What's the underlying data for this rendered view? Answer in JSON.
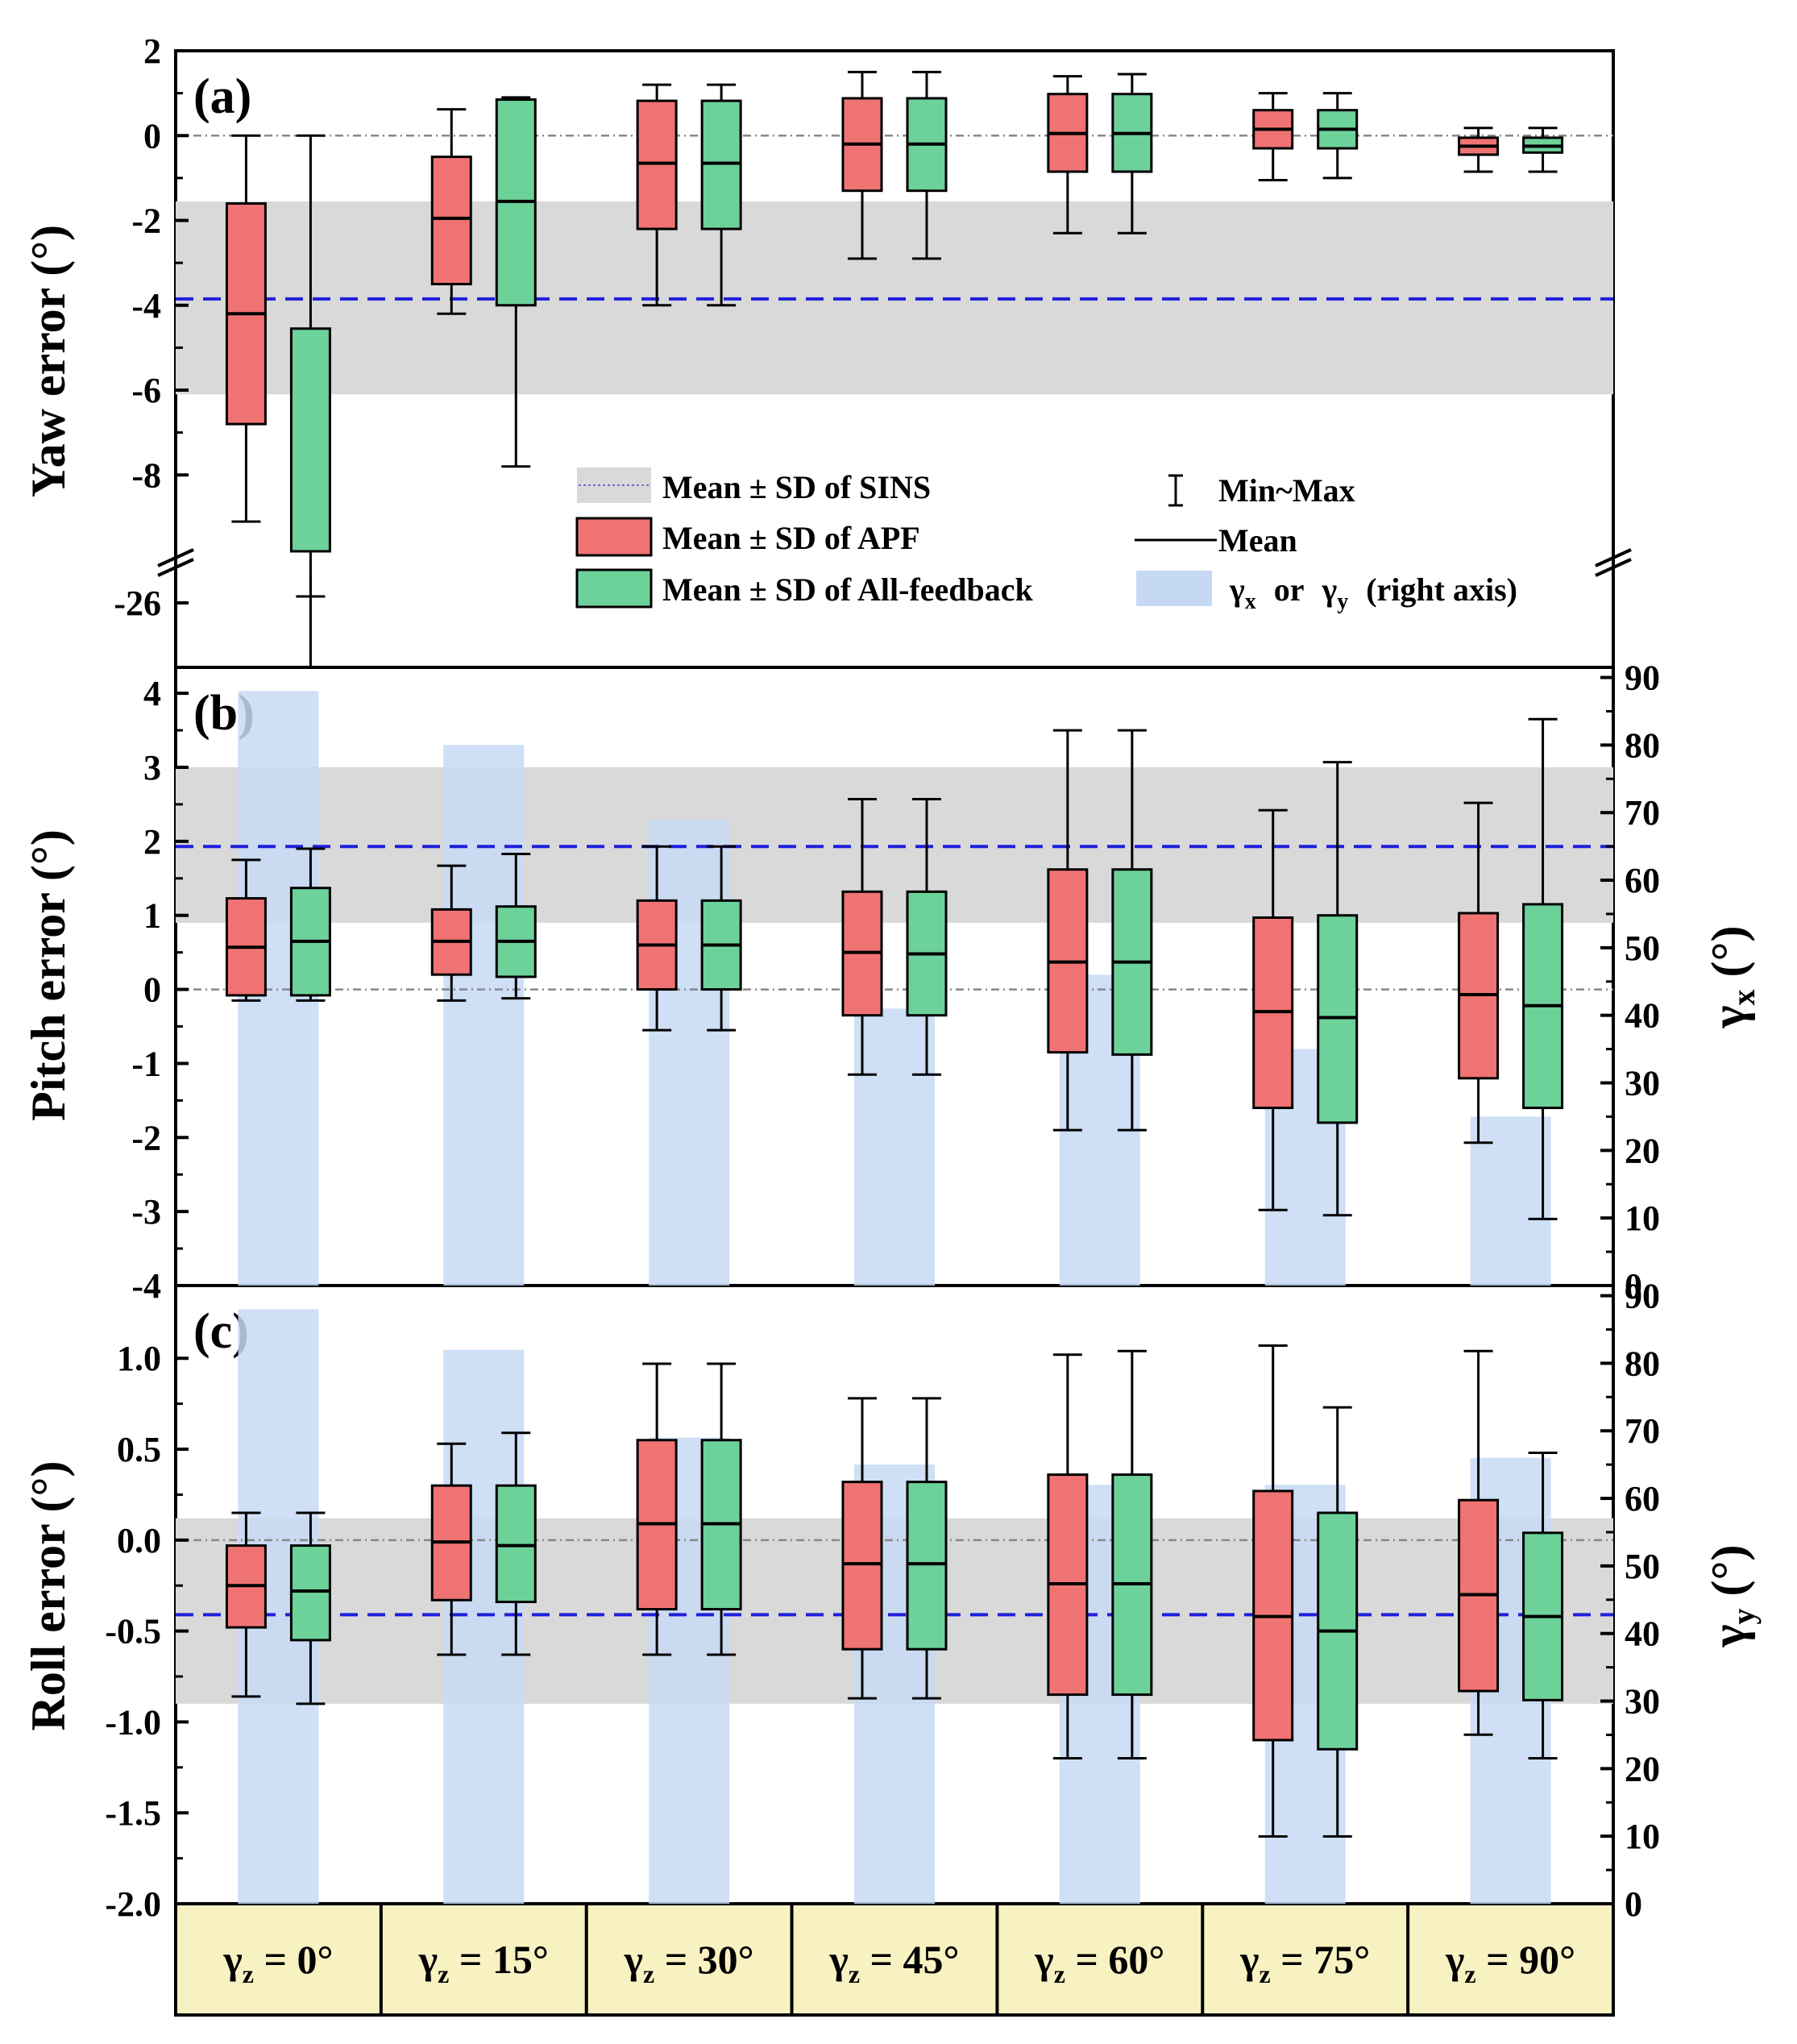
{
  "categories": [
    {
      "base": "γ",
      "sub": "z",
      "rest": " = 0°"
    },
    {
      "base": "γ",
      "sub": "z",
      "rest": " = 15°"
    },
    {
      "base": "γ",
      "sub": "z",
      "rest": " = 30°"
    },
    {
      "base": "γ",
      "sub": "z",
      "rest": " = 45°"
    },
    {
      "base": "γ",
      "sub": "z",
      "rest": " = 60°"
    },
    {
      "base": "γ",
      "sub": "z",
      "rest": " = 75°"
    },
    {
      "base": "γ",
      "sub": "z",
      "rest": " = 90°"
    }
  ],
  "legend": {
    "sins": "Mean ± SD of SINS",
    "apf": "Mean ± SD of APF",
    "allfb": "Mean ± SD of All-feedback",
    "minmax": "Min~Max",
    "mean": "Mean",
    "gamma_sym": "γ",
    "gamma_x_sub": "x",
    "or": "or",
    "gamma_y_sub": "y",
    "right_axis": "(right axis)"
  },
  "colors": {
    "apf": "#f07373",
    "allfb": "#6dd19a",
    "sins_band": "#d9d9d9",
    "gamma_bar": "#c5d9f5",
    "mean_line": "#1f1fdc",
    "cat_bg": "#f8f2c2"
  },
  "chart_data": [
    {
      "type": "box",
      "id": "a",
      "panel_label": "(a)",
      "ylabel": "Yaw error (°)",
      "ylim": [
        -9.8,
        2
      ],
      "yticks": [
        2,
        0,
        -2,
        -4,
        -6,
        -8
      ],
      "yticklabels": [
        "2",
        "0",
        "-2",
        "-4",
        "-6",
        "-8"
      ],
      "axis_break": {
        "lower_tick": -26,
        "lower_tick_label": "-26"
      },
      "sins": {
        "mean": -3.85,
        "sd_low": -6.1,
        "sd_high": -1.55
      },
      "apf": [
        {
          "min": -9.1,
          "q_low": -6.8,
          "mean": -4.2,
          "q_high": -1.6,
          "max": 0.0
        },
        {
          "min": -4.2,
          "q_low": -3.5,
          "mean": -1.95,
          "q_high": -0.5,
          "max": 0.62
        },
        {
          "min": -4.0,
          "q_low": -2.2,
          "mean": -0.65,
          "q_high": 0.82,
          "max": 1.2
        },
        {
          "min": -2.9,
          "q_low": -1.3,
          "mean": -0.2,
          "q_high": 0.88,
          "max": 1.5
        },
        {
          "min": -2.3,
          "q_low": -0.85,
          "mean": 0.05,
          "q_high": 0.98,
          "max": 1.4
        },
        {
          "min": -1.05,
          "q_low": -0.3,
          "mean": 0.15,
          "q_high": 0.6,
          "max": 1.0
        },
        {
          "min": -0.85,
          "q_low": -0.45,
          "mean": -0.25,
          "q_high": -0.05,
          "max": 0.18
        }
      ],
      "allfb": [
        {
          "min": -26.0,
          "q_low": -26.0,
          "mean": -26.0,
          "q_high": -4.55,
          "max": 0.0
        },
        {
          "min": -7.8,
          "q_low": -4.0,
          "mean": -1.55,
          "q_high": 0.85,
          "max": 0.9
        },
        {
          "min": -4.0,
          "q_low": -2.2,
          "mean": -0.65,
          "q_high": 0.82,
          "max": 1.2
        },
        {
          "min": -2.9,
          "q_low": -1.3,
          "mean": -0.2,
          "q_high": 0.88,
          "max": 1.5
        },
        {
          "min": -2.3,
          "q_low": -0.85,
          "mean": 0.05,
          "q_high": 0.98,
          "max": 1.45
        },
        {
          "min": -1.0,
          "q_low": -0.3,
          "mean": 0.15,
          "q_high": 0.6,
          "max": 1.0
        },
        {
          "min": -0.85,
          "q_low": -0.4,
          "mean": -0.25,
          "q_high": -0.05,
          "max": 0.18
        }
      ]
    },
    {
      "type": "box",
      "id": "b",
      "panel_label": "(b)",
      "ylabel": "Pitch error (°)",
      "ylim": [
        -4,
        4.35
      ],
      "yticks": [
        4,
        3,
        2,
        1,
        0,
        -1,
        -2,
        -3,
        -4
      ],
      "yticklabels": [
        "4",
        "3",
        "2",
        "1",
        "0",
        "-1",
        "-2",
        "-3",
        "-4"
      ],
      "right_axis": {
        "label_base": "γ",
        "label_sub": "x",
        "label_suffix": " (°)",
        "ylim": [
          0,
          91.5
        ],
        "yticks": [
          0,
          10,
          20,
          30,
          40,
          50,
          60,
          70,
          80,
          90
        ],
        "yticklabels": [
          "0",
          "10",
          "20",
          "30",
          "40",
          "50",
          "60",
          "70",
          "80",
          "90"
        ]
      },
      "gamma": [
        88,
        80,
        69,
        41,
        46,
        35,
        25
      ],
      "sins": {
        "mean": 1.93,
        "sd_low": 0.9,
        "sd_high": 3.0
      },
      "apf": [
        {
          "min": -0.15,
          "q_low": -0.08,
          "mean": 0.57,
          "q_high": 1.23,
          "max": 1.75
        },
        {
          "min": -0.15,
          "q_low": 0.2,
          "mean": 0.65,
          "q_high": 1.08,
          "max": 1.67
        },
        {
          "min": -0.55,
          "q_low": 0.0,
          "mean": 0.6,
          "q_high": 1.2,
          "max": 1.93
        },
        {
          "min": -1.15,
          "q_low": -0.35,
          "mean": 0.5,
          "q_high": 1.32,
          "max": 2.57
        },
        {
          "min": -1.9,
          "q_low": -0.85,
          "mean": 0.37,
          "q_high": 1.62,
          "max": 3.5
        },
        {
          "min": -2.98,
          "q_low": -1.6,
          "mean": -0.3,
          "q_high": 0.97,
          "max": 2.42
        },
        {
          "min": -2.07,
          "q_low": -1.2,
          "mean": -0.07,
          "q_high": 1.03,
          "max": 2.52
        }
      ],
      "allfb": [
        {
          "min": -0.15,
          "q_low": -0.08,
          "mean": 0.65,
          "q_high": 1.37,
          "max": 1.9
        },
        {
          "min": -0.12,
          "q_low": 0.17,
          "mean": 0.65,
          "q_high": 1.12,
          "max": 1.83
        },
        {
          "min": -0.55,
          "q_low": 0.0,
          "mean": 0.6,
          "q_high": 1.2,
          "max": 1.93
        },
        {
          "min": -1.15,
          "q_low": -0.35,
          "mean": 0.48,
          "q_high": 1.32,
          "max": 2.57
        },
        {
          "min": -1.9,
          "q_low": -0.88,
          "mean": 0.37,
          "q_high": 1.62,
          "max": 3.5
        },
        {
          "min": -3.05,
          "q_low": -1.8,
          "mean": -0.38,
          "q_high": 1.0,
          "max": 3.07
        },
        {
          "min": -3.1,
          "q_low": -1.6,
          "mean": -0.22,
          "q_high": 1.15,
          "max": 3.65
        }
      ]
    },
    {
      "type": "box",
      "id": "c",
      "panel_label": "(c)",
      "ylabel": "Roll error (°)",
      "ylim": [
        -2.0,
        1.4
      ],
      "yticks": [
        1.0,
        0.5,
        0.0,
        -0.5,
        -1.0,
        -1.5,
        -2.0
      ],
      "yticklabels": [
        "1.0",
        "0.5",
        "0.0",
        "-0.5",
        "-1.0",
        "-1.5",
        "-2.0"
      ],
      "right_axis": {
        "label_base": "γ",
        "label_sub": "y",
        "label_suffix": " (°)",
        "ylim": [
          0,
          91.5
        ],
        "yticks": [
          0,
          10,
          20,
          30,
          40,
          50,
          60,
          70,
          80,
          90
        ],
        "yticklabels": [
          "0",
          "10",
          "20",
          "30",
          "40",
          "50",
          "60",
          "70",
          "80",
          "90"
        ]
      },
      "gamma": [
        88,
        82,
        69,
        65,
        62,
        62,
        66
      ],
      "sins": {
        "mean": -0.41,
        "sd_low": -0.9,
        "sd_high": 0.12
      },
      "apf": [
        {
          "min": -0.86,
          "q_low": -0.48,
          "mean": -0.25,
          "q_high": -0.03,
          "max": 0.15
        },
        {
          "min": -0.63,
          "q_low": -0.33,
          "mean": -0.01,
          "q_high": 0.3,
          "max": 0.53
        },
        {
          "min": -0.63,
          "q_low": -0.38,
          "mean": 0.09,
          "q_high": 0.55,
          "max": 0.97
        },
        {
          "min": -0.87,
          "q_low": -0.6,
          "mean": -0.13,
          "q_high": 0.32,
          "max": 0.78
        },
        {
          "min": -1.2,
          "q_low": -0.85,
          "mean": -0.24,
          "q_high": 0.36,
          "max": 1.02
        },
        {
          "min": -1.63,
          "q_low": -1.1,
          "mean": -0.42,
          "q_high": 0.27,
          "max": 1.07
        },
        {
          "min": -1.07,
          "q_low": -0.83,
          "mean": -0.3,
          "q_high": 0.22,
          "max": 1.04
        }
      ],
      "allfb": [
        {
          "min": -0.9,
          "q_low": -0.55,
          "mean": -0.28,
          "q_high": -0.03,
          "max": 0.15
        },
        {
          "min": -0.63,
          "q_low": -0.34,
          "mean": -0.03,
          "q_high": 0.3,
          "max": 0.59
        },
        {
          "min": -0.63,
          "q_low": -0.38,
          "mean": 0.09,
          "q_high": 0.55,
          "max": 0.97
        },
        {
          "min": -0.87,
          "q_low": -0.6,
          "mean": -0.13,
          "q_high": 0.32,
          "max": 0.78
        },
        {
          "min": -1.2,
          "q_low": -0.85,
          "mean": -0.24,
          "q_high": 0.36,
          "max": 1.04
        },
        {
          "min": -1.63,
          "q_low": -1.15,
          "mean": -0.5,
          "q_high": 0.15,
          "max": 0.73
        },
        {
          "min": -1.2,
          "q_low": -0.88,
          "mean": -0.42,
          "q_high": 0.04,
          "max": 0.48
        }
      ]
    }
  ]
}
